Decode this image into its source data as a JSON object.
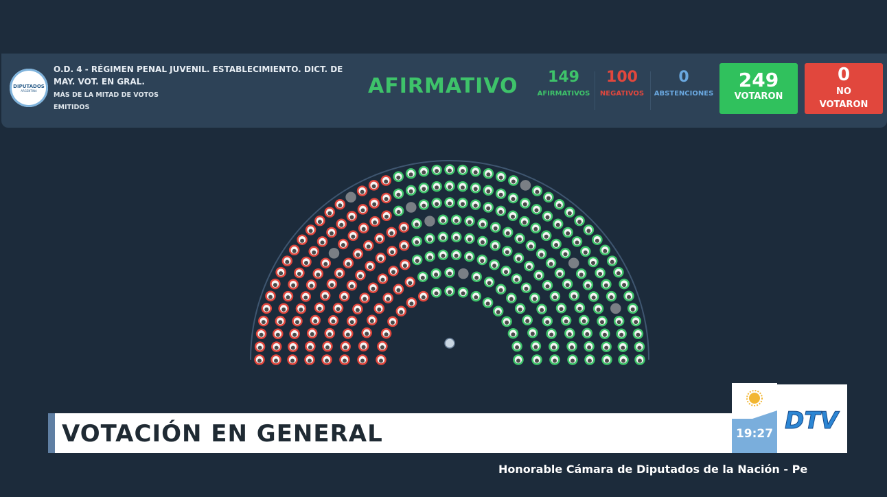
{
  "motion": {
    "title": "O.D. 4 - RÉGIMEN PENAL JUVENIL. ESTABLECIMIENTO. DICT. DE MAY. VOT. EN GRAL.",
    "majority_rule": "MÁS DE LA MITAD DE VOTOS EMITIDOS"
  },
  "logo": {
    "line1": "DIPUTADOS",
    "line2": "ARGENTINA"
  },
  "result": "AFIRMATIVO",
  "counts": {
    "afirmativos": {
      "value": "149",
      "label": "AFIRMATIVOS"
    },
    "negativos": {
      "value": "100",
      "label": "NEGATIVOS"
    },
    "abstenciones": {
      "value": "0",
      "label": "ABSTENCIONES"
    },
    "votaron": {
      "value": "249",
      "label": "VOTARON"
    },
    "no_votaron": {
      "value": "0",
      "label_line1": "NO",
      "label_line2": "VOTARON"
    }
  },
  "colors": {
    "affirmative": "#3ec36a",
    "negative": "#e1473d",
    "abstention": "#6aa8e0",
    "absent": "#7a7f85"
  },
  "lower_third": "VOTACIÓN EN GENERAL",
  "clock": "19:27",
  "channel_logo": "DTV",
  "footer": "Honorable Cámara de Diputados de la Nación - Pe"
}
